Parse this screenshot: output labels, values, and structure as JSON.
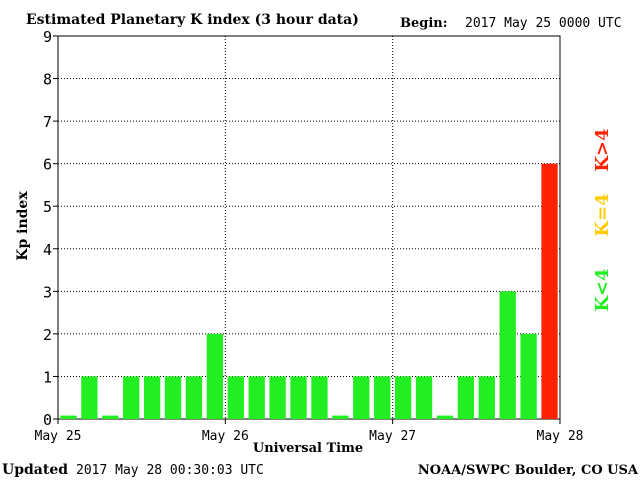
{
  "title": "Estimated Planetary K index (3 hour data)",
  "begin_label": "Begin:",
  "begin_value": "2017 May 25 0000 UTC",
  "updated_label": "Updated",
  "updated_value": "2017 May 28 00:30:03 UTC",
  "source": "NOAA/SWPC Boulder, CO USA",
  "colors": {
    "green": "#22ee22",
    "yellow": "#ffcc00",
    "red": "#ff2200",
    "grid": "#000000"
  },
  "legend": [
    {
      "text": "K>4",
      "color": "#ff2200"
    },
    {
      "text": "K=4",
      "color": "#ffcc00"
    },
    {
      "text": "K<4",
      "color": "#22ee22"
    }
  ],
  "chart_data": {
    "type": "bar",
    "title": "Estimated Planetary K index (3 hour data)",
    "xlabel": "Universal Time",
    "ylabel": "Kp index",
    "ylim": [
      0,
      9
    ],
    "yticks": [
      0,
      1,
      2,
      3,
      4,
      5,
      6,
      7,
      8,
      9
    ],
    "xtick_labels": [
      "May 25",
      "May 26",
      "May 27",
      "May 28"
    ],
    "grid": true,
    "values": [
      0,
      1,
      0,
      1,
      1,
      1,
      1,
      2,
      1,
      1,
      1,
      1,
      1,
      0,
      1,
      1,
      1,
      1,
      0,
      1,
      1,
      3,
      2,
      6
    ]
  }
}
